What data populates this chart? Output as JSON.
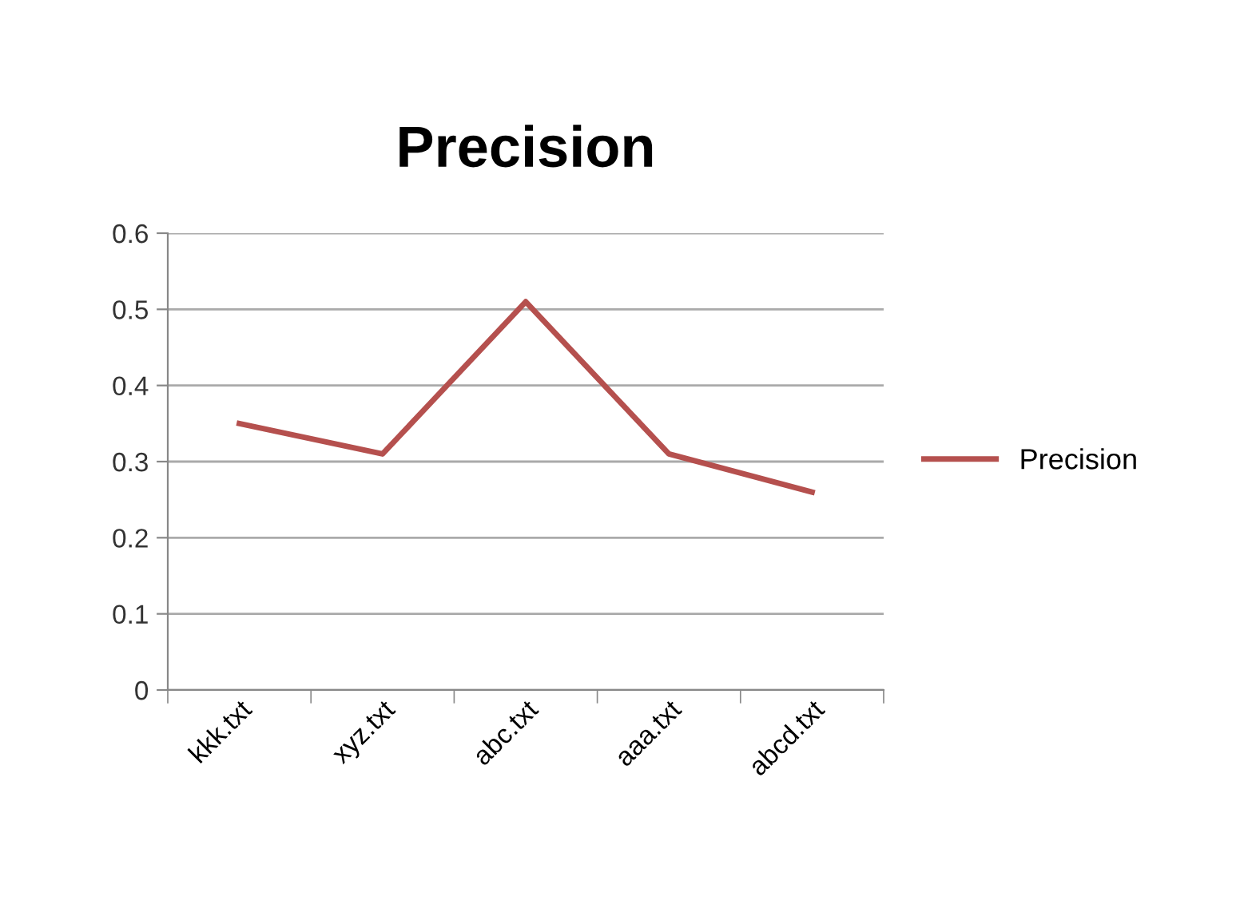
{
  "chart_data": {
    "type": "line",
    "title": "Precision",
    "categories": [
      "kkk.txt",
      "xyz.txt",
      "abc.txt",
      "aaa.txt",
      "abcd.txt"
    ],
    "series": [
      {
        "name": "Precision",
        "color": "#b5504e",
        "values": [
          0.35,
          0.31,
          0.51,
          0.31,
          0.26
        ]
      }
    ],
    "ylim": [
      0,
      0.6
    ],
    "yticks": [
      {
        "value": 0,
        "label": "0"
      },
      {
        "value": 0.1,
        "label": "0.1"
      },
      {
        "value": 0.2,
        "label": "0.2"
      },
      {
        "value": 0.3,
        "label": "0.3"
      },
      {
        "value": 0.4,
        "label": "0.4"
      },
      {
        "value": 0.5,
        "label": "0.5"
      },
      {
        "value": 0.6,
        "label": "0.6"
      }
    ],
    "grid": "y",
    "legend": "right",
    "marker": "none",
    "line_style": "solid"
  }
}
